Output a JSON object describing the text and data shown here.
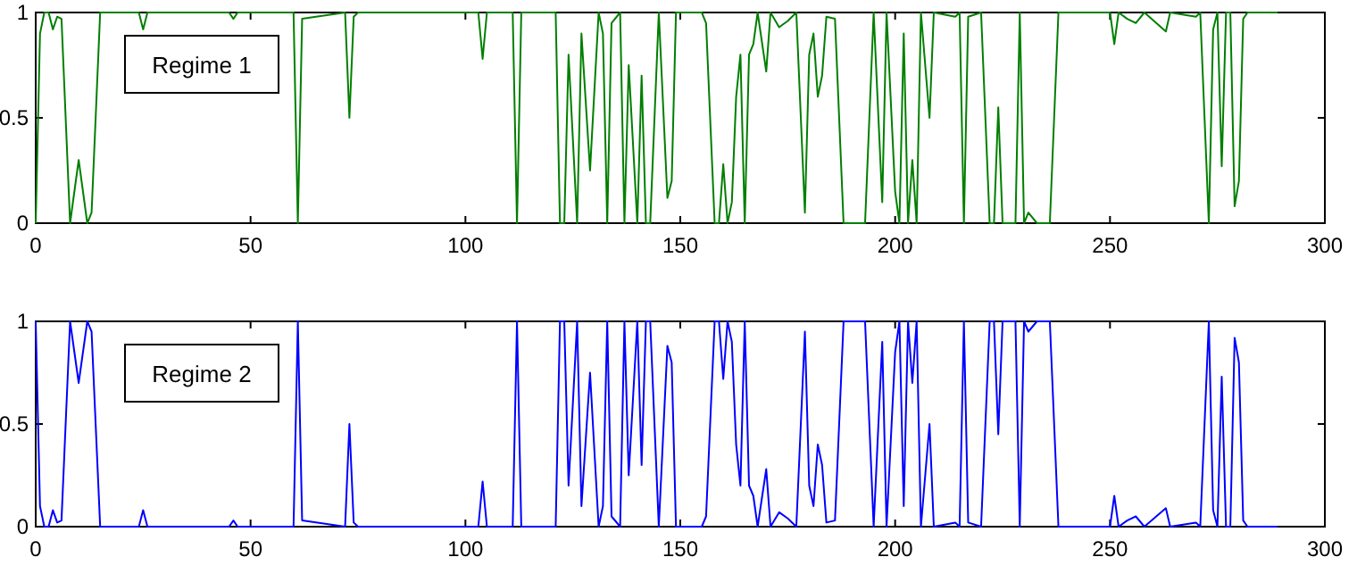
{
  "chart_data": [
    {
      "type": "line",
      "x": [
        0,
        1,
        2,
        3,
        4,
        5,
        6,
        8,
        10,
        12,
        13,
        15,
        24,
        25,
        26,
        45,
        46,
        47,
        60,
        61,
        62,
        72,
        73,
        74,
        75,
        103,
        104,
        105,
        111,
        112,
        113,
        121,
        122,
        123,
        124,
        126,
        127,
        129,
        131,
        132,
        133,
        134,
        136,
        137,
        138,
        140,
        141,
        142,
        143,
        145,
        147,
        148,
        149,
        155,
        156,
        158,
        159,
        160,
        161,
        162,
        163,
        164,
        165,
        166,
        167,
        168,
        170,
        171,
        173,
        175,
        177,
        179,
        180,
        181,
        182,
        183,
        184,
        186,
        188,
        193,
        195,
        197,
        198,
        200,
        201,
        202,
        203,
        204,
        205,
        206,
        208,
        209,
        214,
        215,
        216,
        217,
        220,
        222,
        223,
        224,
        225,
        228,
        229,
        230,
        231,
        233,
        236,
        238,
        250,
        251,
        252,
        254,
        256,
        258,
        263,
        264,
        270,
        271,
        273,
        274,
        275,
        276,
        277,
        278,
        279,
        280,
        281,
        282,
        289
      ],
      "series": [
        {
          "color": "#007f00",
          "values": [
            0,
            0.9,
            1,
            1,
            0.92,
            0.98,
            0.97,
            0,
            0.3,
            0,
            0.05,
            1,
            1,
            0.92,
            1,
            1,
            0.97,
            1,
            1,
            0,
            0.97,
            1,
            0.5,
            0.98,
            1,
            1,
            0.78,
            1,
            1,
            0,
            1,
            1,
            0,
            0,
            0.8,
            0,
            0.9,
            0.25,
            1,
            0.9,
            0,
            0.95,
            1,
            0,
            0.75,
            0,
            0.7,
            0,
            0,
            1,
            0.12,
            0.2,
            1,
            1,
            0.95,
            0,
            0,
            0.28,
            0,
            0.1,
            0.6,
            0.8,
            0,
            0.8,
            0.85,
            1,
            0.72,
            1,
            0.93,
            0.96,
            1,
            0.05,
            0.8,
            0.9,
            0.6,
            0.7,
            0.98,
            0.97,
            0,
            0,
            1,
            0.1,
            1,
            0.15,
            0,
            0.9,
            0,
            0.3,
            0,
            1,
            0.5,
            1,
            0.98,
            1,
            0,
            0.98,
            1,
            0,
            0,
            0.55,
            0,
            0,
            1,
            0,
            0.05,
            0,
            0,
            1,
            1,
            0.85,
            1,
            0.97,
            0.95,
            1,
            0.91,
            1,
            0.98,
            1,
            0,
            0.92,
            1,
            0.27,
            1,
            1,
            0.08,
            0.2,
            0.97,
            1,
            1
          ]
        }
      ],
      "xlim": [
        0,
        300
      ],
      "xticks": [
        0,
        50,
        100,
        150,
        200,
        250,
        300
      ],
      "ylim": [
        0,
        1
      ],
      "yticks": [
        0,
        0.5,
        1
      ],
      "annotations": [
        "Regime 1"
      ]
    },
    {
      "type": "line",
      "x": [
        0,
        1,
        2,
        3,
        4,
        5,
        6,
        8,
        10,
        12,
        13,
        15,
        24,
        25,
        26,
        45,
        46,
        47,
        60,
        61,
        62,
        72,
        73,
        74,
        75,
        103,
        104,
        105,
        111,
        112,
        113,
        121,
        122,
        123,
        124,
        126,
        127,
        129,
        131,
        132,
        133,
        134,
        136,
        137,
        138,
        140,
        141,
        142,
        143,
        145,
        147,
        148,
        149,
        155,
        156,
        158,
        159,
        160,
        161,
        162,
        163,
        164,
        165,
        166,
        167,
        168,
        170,
        171,
        173,
        175,
        177,
        179,
        180,
        181,
        182,
        183,
        184,
        186,
        188,
        193,
        195,
        197,
        198,
        200,
        201,
        202,
        203,
        204,
        205,
        206,
        208,
        209,
        214,
        215,
        216,
        217,
        220,
        222,
        223,
        224,
        225,
        228,
        229,
        230,
        231,
        233,
        236,
        238,
        250,
        251,
        252,
        254,
        256,
        258,
        263,
        264,
        270,
        271,
        273,
        274,
        275,
        276,
        277,
        278,
        279,
        280,
        281,
        282,
        289
      ],
      "series": [
        {
          "color": "#0000ff",
          "values": [
            1,
            0.1,
            0,
            0,
            0.08,
            0.02,
            0.03,
            1,
            0.7,
            1,
            0.95,
            0,
            0,
            0.08,
            0,
            0,
            0.03,
            0,
            0,
            1,
            0.03,
            0,
            0.5,
            0.02,
            0,
            0,
            0.22,
            0,
            0,
            1,
            0,
            0,
            1,
            1,
            0.2,
            1,
            0.1,
            0.75,
            0,
            0.1,
            1,
            0.05,
            0,
            1,
            0.25,
            1,
            0.3,
            1,
            1,
            0,
            0.88,
            0.8,
            0,
            0,
            0.05,
            1,
            1,
            0.72,
            1,
            0.9,
            0.4,
            0.2,
            1,
            0.2,
            0.15,
            0,
            0.28,
            0,
            0.07,
            0.04,
            0,
            0.95,
            0.2,
            0.1,
            0.4,
            0.3,
            0.02,
            0.03,
            1,
            1,
            0,
            0.9,
            0,
            0.85,
            1,
            0.1,
            1,
            0.7,
            1,
            0,
            0.5,
            0,
            0.02,
            0,
            1,
            0.02,
            0,
            1,
            1,
            0.45,
            1,
            1,
            0,
            1,
            0.95,
            1,
            1,
            0,
            0,
            0.15,
            0,
            0.03,
            0.05,
            0,
            0.09,
            0,
            0.02,
            0,
            1,
            0.08,
            0,
            0.73,
            0,
            0,
            0.92,
            0.8,
            0.03,
            0,
            0
          ]
        }
      ],
      "xlim": [
        0,
        300
      ],
      "xticks": [
        0,
        50,
        100,
        150,
        200,
        250,
        300
      ],
      "ylim": [
        0,
        1
      ],
      "yticks": [
        0,
        0.5,
        1
      ],
      "annotations": [
        "Regime 2"
      ]
    }
  ]
}
